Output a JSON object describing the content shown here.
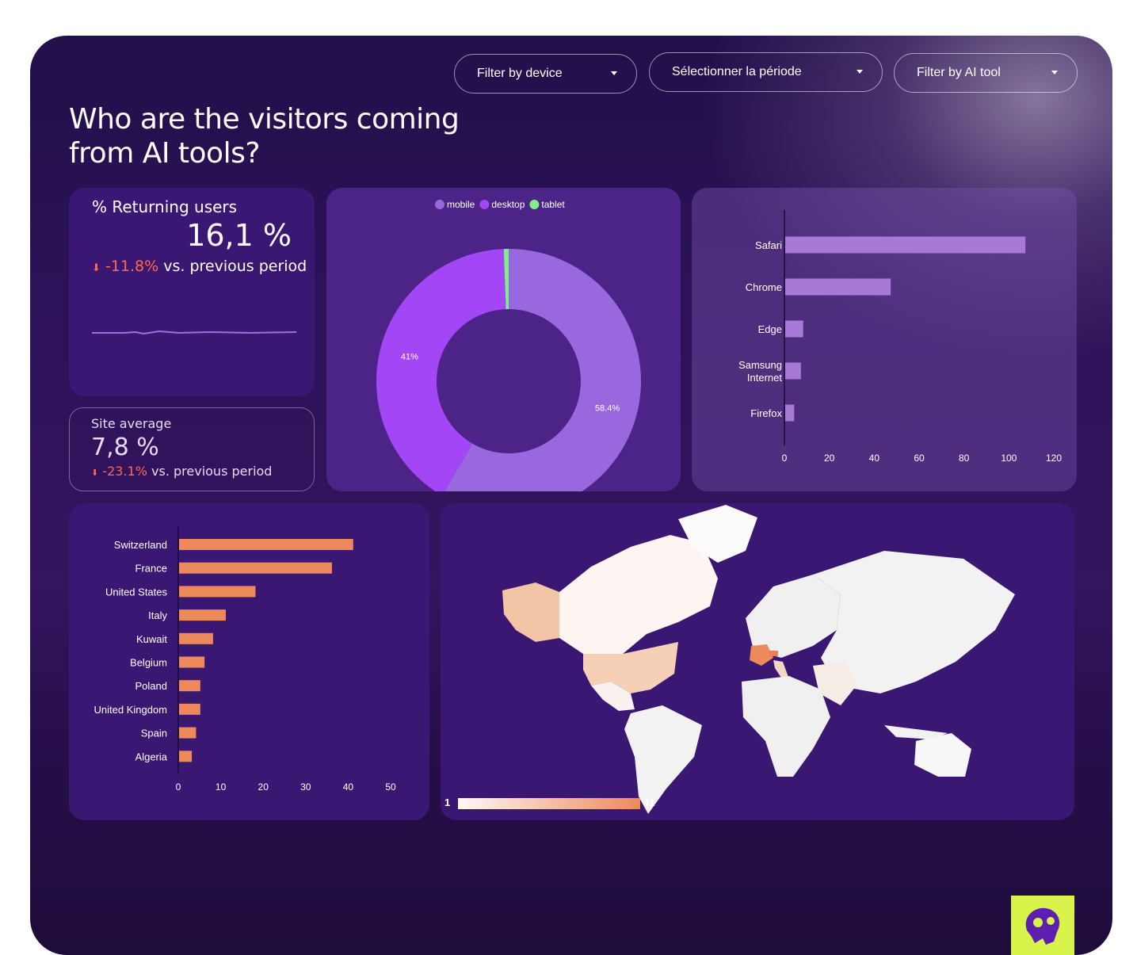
{
  "filters": [
    {
      "label": "Filter by device"
    },
    {
      "label": "Sélectionner la période"
    },
    {
      "label": "Filter by AI tool"
    }
  ],
  "page_title": "Who are the visitors coming from AI tools?",
  "returning": {
    "title": "% Returning users",
    "value": "16,1 %",
    "delta": "-11.8%",
    "delta_suffix": "vs. previous period",
    "arrow_icon": "down-arrow-icon"
  },
  "site_average": {
    "title": "Site average",
    "value": "7,8 %",
    "delta": "-23.1%",
    "delta_suffix": "vs. previous period"
  },
  "colors": {
    "mobile": "#9a68de",
    "desktop": "#a347f6",
    "tablet": "#7ef08a",
    "bar_browser": "#a87ad8",
    "bar_country": "#ec8a5c",
    "negative": "#ff6a4e",
    "logo_bg": "#d8f34a"
  },
  "chart_data": [
    {
      "type": "pie",
      "legend": [
        "mobile",
        "desktop",
        "tablet"
      ],
      "legend_position": "top",
      "values": [
        58.4,
        41,
        0.6
      ],
      "labels": [
        "58.4%",
        "41%",
        ""
      ]
    },
    {
      "type": "bar",
      "orientation": "horizontal",
      "categories": [
        "Safari",
        "Chrome",
        "Edge",
        "Samsung Internet",
        "Firefox"
      ],
      "values": [
        107,
        47,
        8,
        7,
        4
      ],
      "xlim": [
        0,
        120
      ],
      "ticks": [
        "0",
        "20",
        "40",
        "60",
        "80",
        "100",
        "120"
      ]
    },
    {
      "type": "bar",
      "orientation": "horizontal",
      "categories": [
        "Switzerland",
        "France",
        "United States",
        "Italy",
        "Kuwait",
        "Belgium",
        "Poland",
        "United Kingdom",
        "Spain",
        "Algeria"
      ],
      "values": [
        41,
        36,
        18,
        11,
        8,
        6,
        5,
        5,
        4,
        3
      ],
      "xlim": [
        0,
        50
      ],
      "ticks": [
        "0",
        "10",
        "20",
        "30",
        "40",
        "50"
      ]
    },
    {
      "type": "heatmap",
      "kind": "world-map",
      "scale_min": "1",
      "scale_max": "41"
    }
  ]
}
